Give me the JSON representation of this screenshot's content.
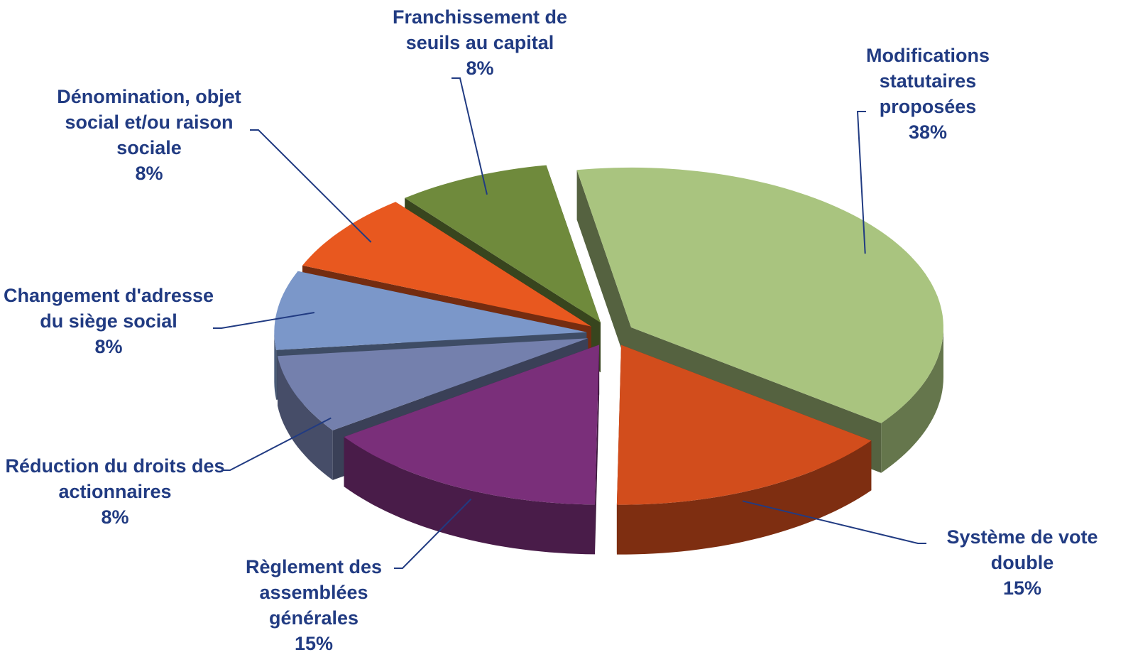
{
  "chart_data": {
    "type": "pie3d",
    "categories": [
      "Modifications statutaires proposées",
      "Système de vote double",
      "Règlement des assemblées générales",
      "Réduction du droits des actionnaires",
      "Changement d'adresse du siège social",
      "Dénomination, objet social et/ou raison sociale",
      "Franchissement de seuils au capital"
    ],
    "values": [
      38,
      15,
      15,
      8,
      8,
      8,
      8
    ],
    "value_labels": [
      "38%",
      "15%",
      "15%",
      "8%",
      "8%",
      "8%",
      "8%"
    ],
    "colors": [
      "#a9c47f",
      "#d24d1c",
      "#7a2f7a",
      "#7480ad",
      "#7b97c9",
      "#e8581f",
      "#6f8a3c"
    ]
  }
}
